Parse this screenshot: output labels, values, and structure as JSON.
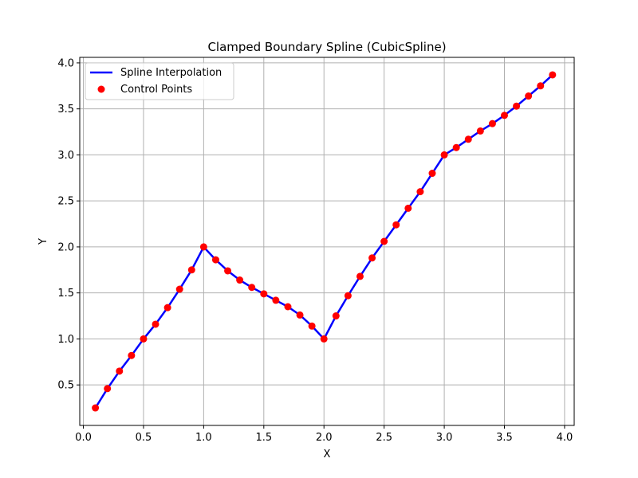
{
  "chart_data": {
    "type": "line",
    "title": "Clamped Boundary Spline (CubicSpline)",
    "xlabel": "X",
    "ylabel": "Y",
    "xlim": [
      -0.03,
      4.08
    ],
    "ylim": [
      0.06,
      4.06
    ],
    "xticks": [
      0.0,
      0.5,
      1.0,
      1.5,
      2.0,
      2.5,
      3.0,
      3.5,
      4.0
    ],
    "xtick_labels": [
      "0.0",
      "0.5",
      "1.0",
      "1.5",
      "2.0",
      "2.5",
      "3.0",
      "3.5",
      "4.0"
    ],
    "yticks": [
      0.5,
      1.0,
      1.5,
      2.0,
      2.5,
      3.0,
      3.5,
      4.0
    ],
    "ytick_labels": [
      "0.5",
      "1.0",
      "1.5",
      "2.0",
      "2.5",
      "3.0",
      "3.5",
      "4.0"
    ],
    "grid": true,
    "legend_position": "upper-left",
    "series": [
      {
        "name": "Spline Interpolation",
        "kind": "line",
        "color": "#0000ff",
        "x": [
          0.1,
          0.2,
          0.3,
          0.4,
          0.5,
          0.6,
          0.7,
          0.8,
          0.9,
          1.0,
          1.1,
          1.2,
          1.3,
          1.4,
          1.5,
          1.6,
          1.7,
          1.8,
          1.9,
          2.0,
          2.1,
          2.2,
          2.3,
          2.4,
          2.5,
          2.6,
          2.7,
          2.8,
          2.9,
          3.0,
          3.1,
          3.2,
          3.3,
          3.4,
          3.5,
          3.6,
          3.7,
          3.8,
          3.9
        ],
        "y": [
          0.25,
          0.46,
          0.65,
          0.82,
          1.0,
          1.16,
          1.34,
          1.54,
          1.75,
          2.0,
          1.86,
          1.74,
          1.64,
          1.56,
          1.49,
          1.42,
          1.35,
          1.26,
          1.14,
          1.0,
          1.25,
          1.47,
          1.68,
          1.88,
          2.06,
          2.24,
          2.42,
          2.6,
          2.8,
          3.0,
          3.08,
          3.17,
          3.26,
          3.34,
          3.43,
          3.53,
          3.64,
          3.75,
          3.87
        ]
      },
      {
        "name": "Control Points",
        "kind": "scatter",
        "color": "#ff0000",
        "x": [
          0.1,
          0.2,
          0.3,
          0.4,
          0.5,
          0.6,
          0.7,
          0.8,
          0.9,
          1.0,
          1.1,
          1.2,
          1.3,
          1.4,
          1.5,
          1.6,
          1.7,
          1.8,
          1.9,
          2.0,
          2.1,
          2.2,
          2.3,
          2.4,
          2.5,
          2.6,
          2.7,
          2.8,
          2.9,
          3.0,
          3.1,
          3.2,
          3.3,
          3.4,
          3.5,
          3.6,
          3.7,
          3.8,
          3.9
        ],
        "y": [
          0.25,
          0.46,
          0.65,
          0.82,
          1.0,
          1.16,
          1.34,
          1.54,
          1.75,
          2.0,
          1.86,
          1.74,
          1.64,
          1.56,
          1.49,
          1.42,
          1.35,
          1.26,
          1.14,
          1.0,
          1.25,
          1.47,
          1.68,
          1.88,
          2.06,
          2.24,
          2.42,
          2.6,
          2.8,
          3.0,
          3.08,
          3.17,
          3.26,
          3.34,
          3.43,
          3.53,
          3.64,
          3.75,
          3.87
        ]
      }
    ]
  }
}
